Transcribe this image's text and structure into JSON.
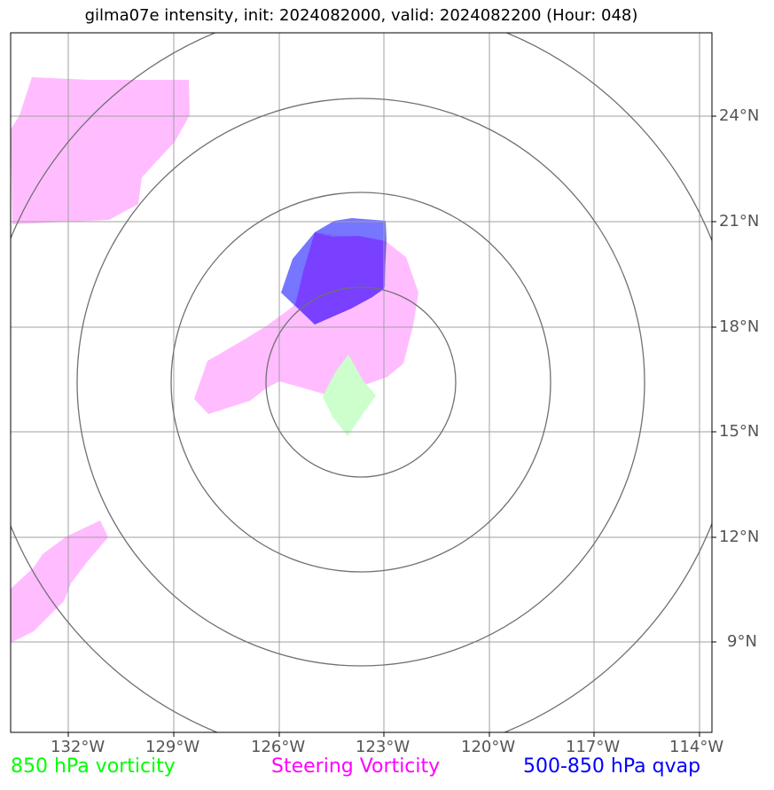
{
  "title": "gilma07e intensity, init: 2024082000, valid: 2024082200 (Hour: 048)",
  "map": {
    "longitude_ticks": [
      "132°W",
      "129°W",
      "126°W",
      "123°W",
      "120°W",
      "117°W",
      "114°W"
    ],
    "latitude_ticks": [
      "24°N",
      "21°N",
      "18°N",
      "15°N",
      "12°N",
      "9°N"
    ],
    "colors": {
      "steering_vorticity_fill": "#ff99ff",
      "qvap_fill": "#5050ff",
      "qvap_core_fill": "#7a3cff",
      "vorticity_850_fill": "#ccffcc",
      "range_rings": "#707070",
      "gridlines": "#a0a0a0"
    }
  },
  "legend": {
    "vorticity_850": {
      "label": "850 hPa vorticity",
      "color": "#00ff00"
    },
    "steering_vorticity": {
      "label": "Steering Vorticity",
      "color": "#ff00ff"
    },
    "qvap": {
      "label": "500-850 hPa qvap",
      "color": "#0000ff"
    }
  }
}
